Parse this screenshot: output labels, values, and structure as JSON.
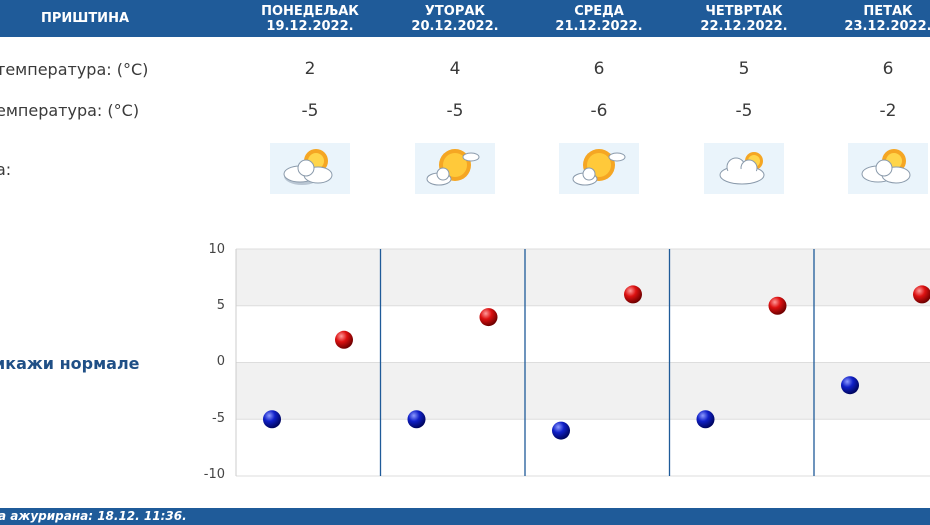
{
  "header": {
    "city": "ПРИШТИНА",
    "days": [
      {
        "name": "ПОНЕДЕЉАК",
        "date": "19.12.2022."
      },
      {
        "name": "УТОРАК",
        "date": "20.12.2022."
      },
      {
        "name": "СРЕДА",
        "date": "21.12.2022."
      },
      {
        "name": "ЧЕТВРТАК",
        "date": "22.12.2022."
      },
      {
        "name": "ПЕТАК",
        "date": "23.12.2022."
      }
    ]
  },
  "rows": {
    "max_label": "температура: (°C)",
    "min_label": "емпература: (°C)",
    "weather_label": "а:"
  },
  "max_temps": [
    "2",
    "4",
    "6",
    "5",
    "6"
  ],
  "min_temps": [
    "-5",
    "-5",
    "-6",
    "-5",
    "-2"
  ],
  "weather_icons": [
    "partly-cloudy-icon",
    "mostly-sunny-icon",
    "mostly-sunny-icon",
    "cloudy-icon",
    "partly-cloudy-icon"
  ],
  "normals_link": "икажи нормале",
  "footer": {
    "updated": "а ажурирана:  18.12. 11:36."
  },
  "colors": {
    "header": "#1f5b99",
    "max_marker": "#cc0000",
    "min_marker": "#0a14b0",
    "grid_band": "#f1f1f1"
  },
  "chart_data": {
    "type": "scatter",
    "categories": [
      "19.12.2022.",
      "20.12.2022.",
      "21.12.2022.",
      "22.12.2022.",
      "23.12.2022."
    ],
    "series": [
      {
        "values": [
          -5,
          -5,
          -6,
          -5,
          -2
        ],
        "color": "#0a14b0"
      },
      {
        "values": [
          2,
          4,
          6,
          5,
          6
        ],
        "color": "#cc0000"
      }
    ],
    "ylim": [
      -10,
      10
    ],
    "yticks": [
      "10",
      "5",
      "0",
      "-5",
      "-10"
    ],
    "grid": true
  }
}
